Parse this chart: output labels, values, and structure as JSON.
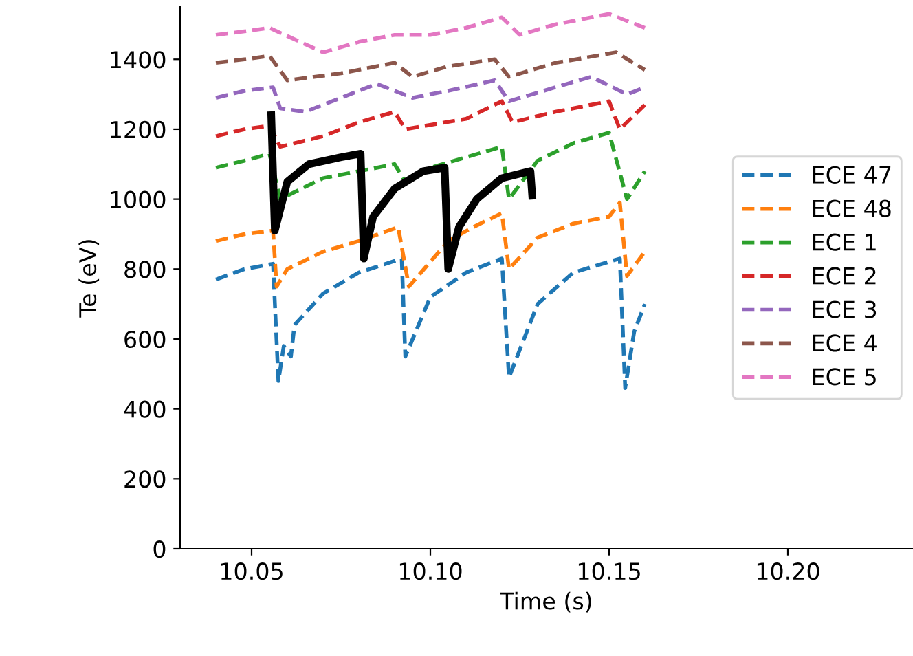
{
  "chart_data": {
    "type": "line",
    "xlabel": "Time (s)",
    "ylabel": "Te (eV)",
    "xlim": [
      10.03,
      10.235
    ],
    "ylim": [
      0,
      1550
    ],
    "xticks": [
      {
        "value": 10.05,
        "label": "10.05"
      },
      {
        "value": 10.1,
        "label": "10.10"
      },
      {
        "value": 10.15,
        "label": "10.15"
      },
      {
        "value": 10.2,
        "label": "10.20"
      }
    ],
    "yticks": [
      0,
      200,
      400,
      600,
      800,
      1000,
      1200,
      1400
    ],
    "grid": false,
    "legend": "right",
    "line_style": "dashed",
    "series": [
      {
        "name": "ECE 47",
        "color": "#1f77b4",
        "x": [
          10.04,
          10.048,
          10.056,
          10.0575,
          10.059,
          10.061,
          10.062,
          10.07,
          10.08,
          10.092,
          10.093,
          10.1,
          10.11,
          10.12,
          10.122,
          10.13,
          10.14,
          10.153,
          10.1545,
          10.157,
          10.16
        ],
        "values": [
          770,
          800,
          815,
          480,
          580,
          550,
          640,
          730,
          790,
          830,
          550,
          720,
          790,
          830,
          490,
          700,
          790,
          830,
          460,
          620,
          700
        ]
      },
      {
        "name": "ECE 48",
        "color": "#ff7f0e",
        "x": [
          10.04,
          10.048,
          10.056,
          10.057,
          10.06,
          10.07,
          10.08,
          10.091,
          10.094,
          10.105,
          10.112,
          10.12,
          10.122,
          10.13,
          10.14,
          10.15,
          10.153,
          10.155,
          10.16
        ],
        "values": [
          880,
          900,
          910,
          750,
          800,
          850,
          880,
          920,
          750,
          880,
          920,
          960,
          800,
          890,
          930,
          950,
          990,
          780,
          850
        ]
      },
      {
        "name": "ECE 1",
        "color": "#2ca02c",
        "x": [
          10.04,
          10.048,
          10.055,
          10.058,
          10.07,
          10.08,
          10.09,
          10.093,
          10.1,
          10.11,
          10.12,
          10.122,
          10.13,
          10.14,
          10.15,
          10.155,
          10.16
        ],
        "values": [
          1090,
          1110,
          1130,
          1000,
          1060,
          1080,
          1100,
          1050,
          1090,
          1120,
          1150,
          1000,
          1110,
          1160,
          1190,
          1000,
          1080
        ]
      },
      {
        "name": "ECE 2",
        "color": "#d62728",
        "x": [
          10.04,
          10.048,
          10.055,
          10.058,
          10.07,
          10.08,
          10.09,
          10.093,
          10.11,
          10.12,
          10.123,
          10.135,
          10.15,
          10.153,
          10.16
        ],
        "values": [
          1180,
          1200,
          1210,
          1150,
          1180,
          1220,
          1250,
          1200,
          1230,
          1280,
          1220,
          1250,
          1280,
          1200,
          1270
        ]
      },
      {
        "name": "ECE 3",
        "color": "#9467bd",
        "x": [
          10.04,
          10.048,
          10.056,
          10.058,
          10.065,
          10.075,
          10.085,
          10.095,
          10.105,
          10.118,
          10.122,
          10.135,
          10.145,
          10.155,
          10.16
        ],
        "values": [
          1290,
          1310,
          1320,
          1260,
          1250,
          1290,
          1330,
          1290,
          1310,
          1340,
          1280,
          1320,
          1350,
          1300,
          1320
        ]
      },
      {
        "name": "ECE 4",
        "color": "#8c564b",
        "x": [
          10.04,
          10.048,
          10.055,
          10.06,
          10.075,
          10.09,
          10.095,
          10.105,
          10.118,
          10.122,
          10.135,
          10.152,
          10.16
        ],
        "values": [
          1390,
          1400,
          1410,
          1340,
          1360,
          1390,
          1350,
          1380,
          1400,
          1350,
          1390,
          1420,
          1370
        ]
      },
      {
        "name": "ECE 5",
        "color": "#e377c2",
        "x": [
          10.04,
          10.048,
          10.055,
          10.07,
          10.08,
          10.09,
          10.1,
          10.11,
          10.12,
          10.125,
          10.135,
          10.15,
          10.16
        ],
        "values": [
          1470,
          1480,
          1490,
          1420,
          1450,
          1470,
          1470,
          1490,
          1520,
          1470,
          1500,
          1530,
          1490
        ]
      },
      {
        "color": "#000000",
        "line_style": "solid",
        "x": [
          10.0555,
          10.0565,
          10.06,
          10.066,
          10.075,
          10.0805,
          10.0814,
          10.084,
          10.09,
          10.098,
          10.104,
          10.105,
          10.108,
          10.113,
          10.12,
          10.128,
          10.1285
        ],
        "values": [
          1240,
          910,
          1050,
          1100,
          1120,
          1130,
          830,
          950,
          1030,
          1080,
          1090,
          800,
          920,
          1000,
          1060,
          1080,
          1010
        ]
      }
    ]
  }
}
